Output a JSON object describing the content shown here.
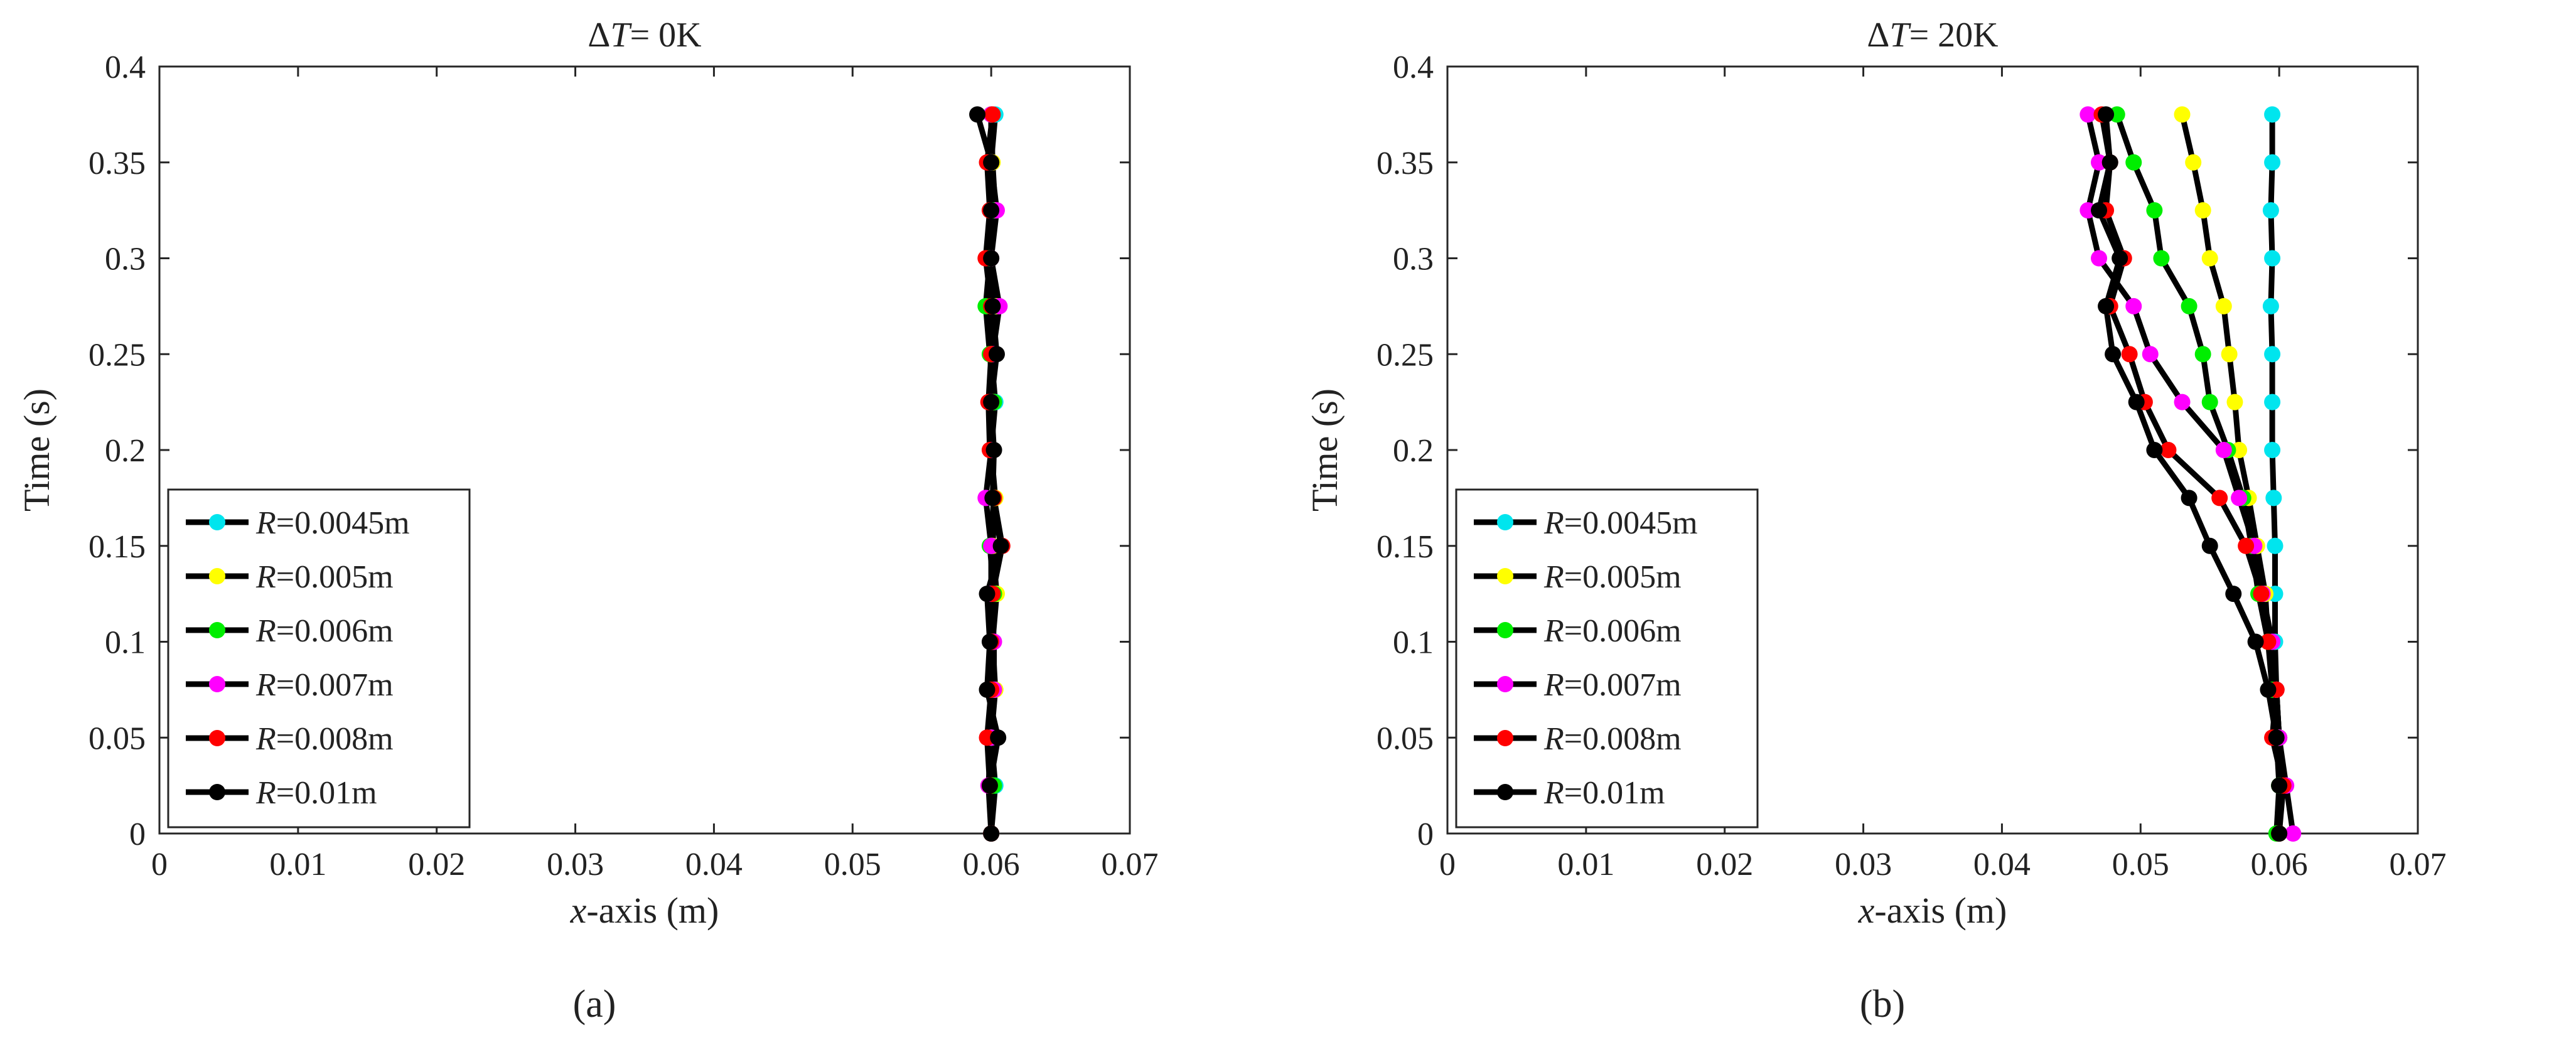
{
  "chart_data": [
    {
      "type": "line",
      "title": "ΔT= 0K",
      "title_parts": {
        "delta": "Δ",
        "var": "T",
        "rest": "= 0K"
      },
      "xlabel": "x-axis (m)",
      "xlabel_parts": {
        "var": "x",
        "rest": "-axis (m)"
      },
      "ylabel": "Time (s)",
      "xlim": [
        0,
        0.07
      ],
      "ylim": [
        0,
        0.4
      ],
      "xticks": [
        "0",
        "0.01",
        "0.02",
        "0.03",
        "0.04",
        "0.05",
        "0.06",
        "0.07"
      ],
      "yticks": [
        "0",
        "0.05",
        "0.1",
        "0.15",
        "0.2",
        "0.25",
        "0.3",
        "0.35",
        "0.4"
      ],
      "panel_label": "(a)",
      "legend_position": "lower-left",
      "grid": false,
      "line_color": "#000000",
      "series": [
        {
          "name": "R=0.0045m",
          "legend_var": "R",
          "legend_rest": "=0.0045m",
          "marker_color": "#00e5ee",
          "x": [
            0.06,
            0.0603,
            0.06,
            0.0602,
            0.06,
            0.0603,
            0.06,
            0.0602,
            0.06,
            0.0603,
            0.06,
            0.0603,
            0.06,
            0.0602,
            0.06,
            0.0603
          ],
          "y": [
            0,
            0.025,
            0.05,
            0.075,
            0.1,
            0.125,
            0.15,
            0.175,
            0.2,
            0.225,
            0.25,
            0.275,
            0.3,
            0.325,
            0.35,
            0.375
          ]
        },
        {
          "name": "R=0.005m",
          "legend_var": "R",
          "legend_rest": "=0.005m",
          "marker_color": "#ffff00",
          "x": [
            0.06,
            0.0601,
            0.06,
            0.0603,
            0.0601,
            0.0604,
            0.0601,
            0.0603,
            0.06,
            0.0602,
            0.06,
            0.0604,
            0.06,
            0.0603,
            0.0601,
            0.06
          ],
          "y": [
            0,
            0.025,
            0.05,
            0.075,
            0.1,
            0.125,
            0.15,
            0.175,
            0.2,
            0.225,
            0.25,
            0.275,
            0.3,
            0.325,
            0.35,
            0.375
          ]
        },
        {
          "name": "R=0.006m",
          "legend_var": "R",
          "legend_rest": "=0.006m",
          "marker_color": "#00ee00",
          "x": [
            0.06,
            0.0602,
            0.06,
            0.0601,
            0.06,
            0.0602,
            0.0599,
            0.0602,
            0.06,
            0.0602,
            0.0599,
            0.0596,
            0.0599,
            0.0601,
            0.06,
            0.06
          ],
          "y": [
            0,
            0.025,
            0.05,
            0.075,
            0.1,
            0.125,
            0.15,
            0.175,
            0.2,
            0.225,
            0.25,
            0.275,
            0.3,
            0.325,
            0.35,
            0.375
          ]
        },
        {
          "name": "R=0.007m",
          "legend_var": "R",
          "legend_rest": "=0.007m",
          "marker_color": "#ff00ff",
          "x": [
            0.06,
            0.0598,
            0.06,
            0.0602,
            0.0602,
            0.06,
            0.06,
            0.0596,
            0.06,
            0.06,
            0.0601,
            0.0606,
            0.06,
            0.0604,
            0.06,
            0.06
          ],
          "y": [
            0,
            0.025,
            0.05,
            0.075,
            0.1,
            0.125,
            0.15,
            0.175,
            0.2,
            0.225,
            0.25,
            0.275,
            0.3,
            0.325,
            0.35,
            0.375
          ]
        },
        {
          "name": "R=0.008m",
          "legend_var": "R",
          "legend_rest": "=0.008m",
          "marker_color": "#ff0000",
          "x": [
            0.06,
            0.0599,
            0.0597,
            0.06,
            0.06,
            0.0601,
            0.0608,
            0.0602,
            0.0599,
            0.0598,
            0.06,
            0.06,
            0.0596,
            0.0599,
            0.0597,
            0.0601
          ],
          "y": [
            0,
            0.025,
            0.05,
            0.075,
            0.1,
            0.125,
            0.15,
            0.175,
            0.2,
            0.225,
            0.25,
            0.275,
            0.3,
            0.325,
            0.35,
            0.375
          ]
        },
        {
          "name": "R=0.01m",
          "legend_var": "R",
          "legend_rest": "=0.01m",
          "marker_color": "#000000",
          "x": [
            0.06,
            0.0599,
            0.0605,
            0.0597,
            0.0599,
            0.0597,
            0.0607,
            0.0601,
            0.0602,
            0.06,
            0.0604,
            0.0601,
            0.06,
            0.06,
            0.06,
            0.059
          ],
          "y": [
            0,
            0.025,
            0.05,
            0.075,
            0.1,
            0.125,
            0.15,
            0.175,
            0.2,
            0.225,
            0.25,
            0.275,
            0.3,
            0.325,
            0.35,
            0.375
          ]
        }
      ]
    },
    {
      "type": "line",
      "title": "ΔT= 20K",
      "title_parts": {
        "delta": "Δ",
        "var": "T",
        "rest": "= 20K"
      },
      "xlabel": "x-axis (m)",
      "xlabel_parts": {
        "var": "x",
        "rest": "-axis (m)"
      },
      "ylabel": "Time (s)",
      "xlim": [
        0,
        0.07
      ],
      "ylim": [
        0,
        0.4
      ],
      "xticks": [
        "0",
        "0.01",
        "0.02",
        "0.03",
        "0.04",
        "0.05",
        "0.06",
        "0.07"
      ],
      "yticks": [
        "0",
        "0.05",
        "0.1",
        "0.15",
        "0.2",
        "0.25",
        "0.3",
        "0.35",
        "0.4"
      ],
      "panel_label": "(b)",
      "legend_position": "lower-left",
      "grid": false,
      "line_color": "#000000",
      "series": [
        {
          "name": "R=0.0045m",
          "legend_var": "R",
          "legend_rest": "=0.0045m",
          "marker_color": "#00e5ee",
          "x": [
            0.06,
            0.06,
            0.06,
            0.0598,
            0.0597,
            0.0597,
            0.0597,
            0.0596,
            0.0595,
            0.0595,
            0.0595,
            0.0594,
            0.0595,
            0.0594,
            0.0595,
            0.0595
          ],
          "y": [
            0,
            0.025,
            0.05,
            0.075,
            0.1,
            0.125,
            0.15,
            0.175,
            0.2,
            0.225,
            0.25,
            0.275,
            0.3,
            0.325,
            0.35,
            0.375
          ]
        },
        {
          "name": "R=0.005m",
          "legend_var": "R",
          "legend_rest": "=0.005m",
          "marker_color": "#ffff00",
          "x": [
            0.06,
            0.06,
            0.06,
            0.0598,
            0.0592,
            0.059,
            0.0584,
            0.0578,
            0.0571,
            0.0568,
            0.0564,
            0.056,
            0.055,
            0.0545,
            0.0538,
            0.053
          ],
          "y": [
            0,
            0.025,
            0.05,
            0.075,
            0.1,
            0.125,
            0.15,
            0.175,
            0.2,
            0.225,
            0.25,
            0.275,
            0.3,
            0.325,
            0.35,
            0.375
          ]
        },
        {
          "name": "R=0.006m",
          "legend_var": "R",
          "legend_rest": "=0.006m",
          "marker_color": "#00ee00",
          "x": [
            0.0598,
            0.06,
            0.06,
            0.0595,
            0.0592,
            0.0585,
            0.058,
            0.0574,
            0.0563,
            0.055,
            0.0545,
            0.0535,
            0.0515,
            0.051,
            0.0495,
            0.0483
          ],
          "y": [
            0,
            0.025,
            0.05,
            0.075,
            0.1,
            0.125,
            0.15,
            0.175,
            0.2,
            0.225,
            0.25,
            0.275,
            0.3,
            0.325,
            0.35,
            0.375
          ]
        },
        {
          "name": "R=0.007m",
          "legend_var": "R",
          "legend_rest": "=0.007m",
          "marker_color": "#ff00ff",
          "x": [
            0.061,
            0.0605,
            0.06,
            0.0598,
            0.0595,
            0.0588,
            0.0582,
            0.0571,
            0.056,
            0.053,
            0.0507,
            0.0495,
            0.047,
            0.0462,
            0.047,
            0.0462
          ],
          "y": [
            0,
            0.025,
            0.05,
            0.075,
            0.1,
            0.125,
            0.15,
            0.175,
            0.2,
            0.225,
            0.25,
            0.275,
            0.3,
            0.325,
            0.35,
            0.375
          ]
        },
        {
          "name": "R=0.008m",
          "legend_var": "R",
          "legend_rest": "=0.008m",
          "marker_color": "#ff0000",
          "x": [
            0.06,
            0.0603,
            0.0595,
            0.0598,
            0.0592,
            0.0587,
            0.0576,
            0.0557,
            0.052,
            0.0503,
            0.0492,
            0.0478,
            0.0488,
            0.0475,
            0.0478,
            0.0472
          ],
          "y": [
            0,
            0.025,
            0.05,
            0.075,
            0.1,
            0.125,
            0.15,
            0.175,
            0.2,
            0.225,
            0.25,
            0.275,
            0.3,
            0.325,
            0.35,
            0.375
          ]
        },
        {
          "name": "R=0.01m",
          "legend_var": "R",
          "legend_rest": "=0.01m",
          "marker_color": "#000000",
          "x": [
            0.06,
            0.06,
            0.0598,
            0.0592,
            0.0583,
            0.0567,
            0.055,
            0.0535,
            0.051,
            0.0497,
            0.048,
            0.0475,
            0.0485,
            0.047,
            0.0478,
            0.0475
          ],
          "y": [
            0,
            0.025,
            0.05,
            0.075,
            0.1,
            0.125,
            0.15,
            0.175,
            0.2,
            0.225,
            0.25,
            0.275,
            0.3,
            0.325,
            0.35,
            0.375
          ]
        }
      ]
    }
  ]
}
